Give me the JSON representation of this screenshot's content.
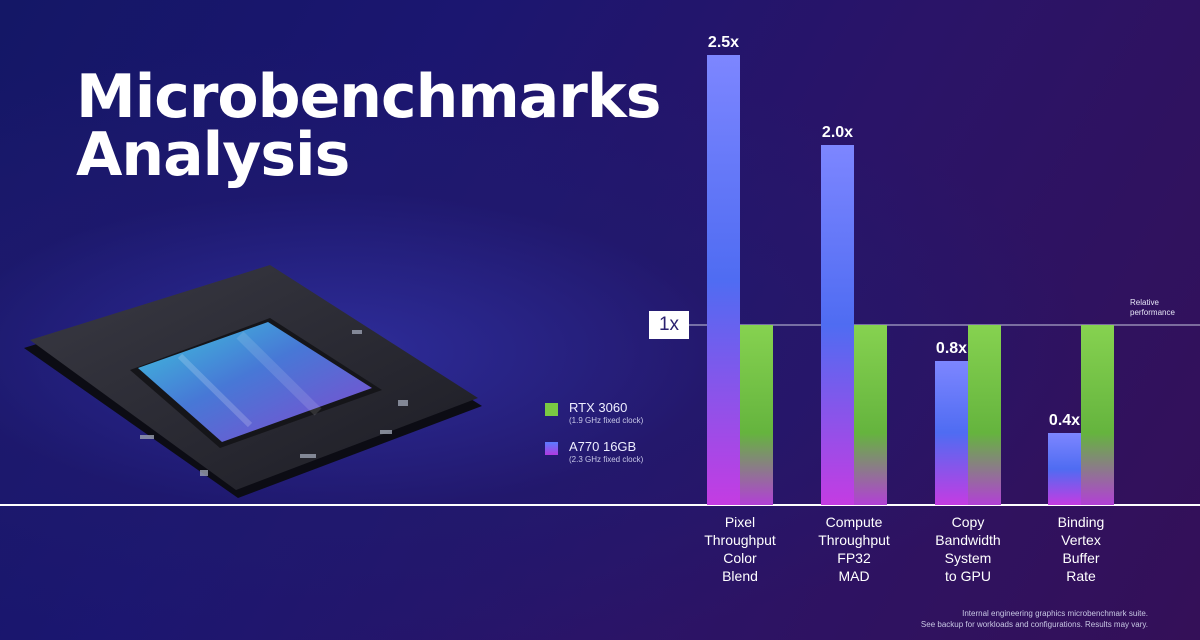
{
  "title_lines": [
    "Microbenchmarks",
    "Analysis"
  ],
  "legend": [
    {
      "name": "RTX 3060",
      "sub": "(1.9 GHz fixed clock)",
      "color": "#7ac943"
    },
    {
      "name": "A770 16GB",
      "sub": "(2.3 GHz fixed clock)",
      "color": "#6e74ff"
    }
  ],
  "baseline_label": "1x",
  "relative_label_lines": [
    "Relative",
    "performance"
  ],
  "chart_data": {
    "type": "bar",
    "categories": [
      [
        "Pixel",
        "Throughput",
        "Color",
        "Blend"
      ],
      [
        "Compute",
        "Throughput",
        "FP32",
        "MAD"
      ],
      [
        "Copy",
        "Bandwidth",
        "System",
        "to GPU"
      ],
      [
        "Binding",
        "Vertex",
        "Buffer",
        "Rate"
      ]
    ],
    "series": [
      {
        "name": "A770 16GB",
        "values": [
          2.5,
          2.0,
          0.8,
          0.4
        ],
        "labels": [
          "2.5x",
          "2.0x",
          "0.8x",
          "0.4x"
        ]
      },
      {
        "name": "RTX 3060",
        "values": [
          1,
          1,
          1,
          1
        ]
      }
    ],
    "ylim": [
      0,
      2.5
    ],
    "legend_position": "left",
    "grid": false
  },
  "footnote_lines": [
    "Internal engineering graphics microbenchmark suite.",
    "See backup for workloads and configurations. Results may vary."
  ]
}
